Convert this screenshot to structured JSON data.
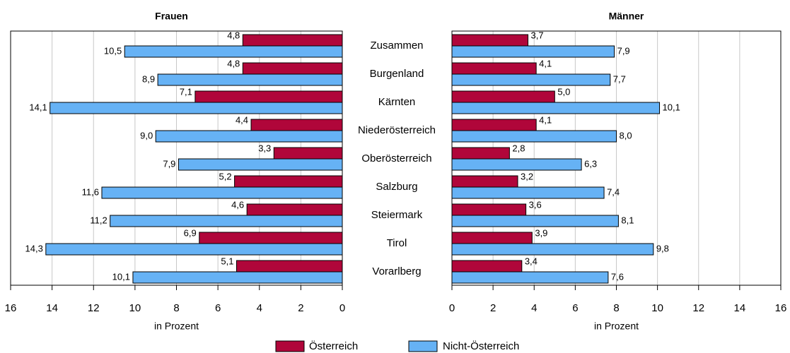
{
  "chart_data": [
    {
      "type": "bar",
      "orientation": "horizontal",
      "title": "Frauen",
      "xlabel": "in Prozent",
      "categories": [
        "Zusammen",
        "Burgenland",
        "Kärnten",
        "Niederösterreich",
        "Oberösterreich",
        "Salzburg",
        "Steiermark",
        "Tirol",
        "Vorarlberg"
      ],
      "series": [
        {
          "name": "Österreich",
          "color": "#b0063a",
          "values": [
            4.8,
            4.8,
            7.1,
            4.4,
            3.3,
            5.2,
            4.6,
            6.9,
            5.1
          ],
          "value_labels": [
            "4,8",
            "4,8",
            "7,1",
            "4,4",
            "3,3",
            "5,2",
            "4,6",
            "6,9",
            "5,1"
          ]
        },
        {
          "name": "Nicht-Österreich",
          "color": "#66b2f5",
          "values": [
            10.5,
            8.9,
            14.1,
            9.0,
            7.9,
            11.6,
            11.2,
            14.3,
            10.1
          ],
          "value_labels": [
            "10,5",
            "8,9",
            "14,1",
            "9,0",
            "7,9",
            "11,6",
            "11,2",
            "14,3",
            "10,1"
          ]
        }
      ],
      "xlim": [
        0,
        16
      ],
      "xticks": [
        0,
        2,
        4,
        6,
        8,
        10,
        12,
        14,
        16
      ],
      "x_reversed": true,
      "grid": true
    },
    {
      "type": "bar",
      "orientation": "horizontal",
      "title": "Männer",
      "xlabel": "in Prozent",
      "series": [
        {
          "color": "#b0063a",
          "values": [
            3.7,
            4.1,
            5.0,
            4.1,
            2.8,
            3.2,
            3.6,
            3.9,
            3.4
          ],
          "value_labels": [
            "3,7",
            "4,1",
            "5,0",
            "4,1",
            "2,8",
            "3,2",
            "3,6",
            "3,9",
            "3,4"
          ]
        },
        {
          "color": "#66b2f5",
          "values": [
            7.9,
            7.7,
            10.1,
            8.0,
            6.3,
            7.4,
            8.1,
            9.8,
            7.6
          ],
          "value_labels": [
            "7,9",
            "7,7",
            "10,1",
            "8,0",
            "6,3",
            "7,4",
            "8,1",
            "9,8",
            "7,6"
          ]
        }
      ],
      "xlim": [
        0,
        16
      ],
      "xticks": [
        0,
        2,
        4,
        6,
        8,
        10,
        12,
        14,
        16
      ],
      "x_reversed": false,
      "grid": true
    }
  ]
}
